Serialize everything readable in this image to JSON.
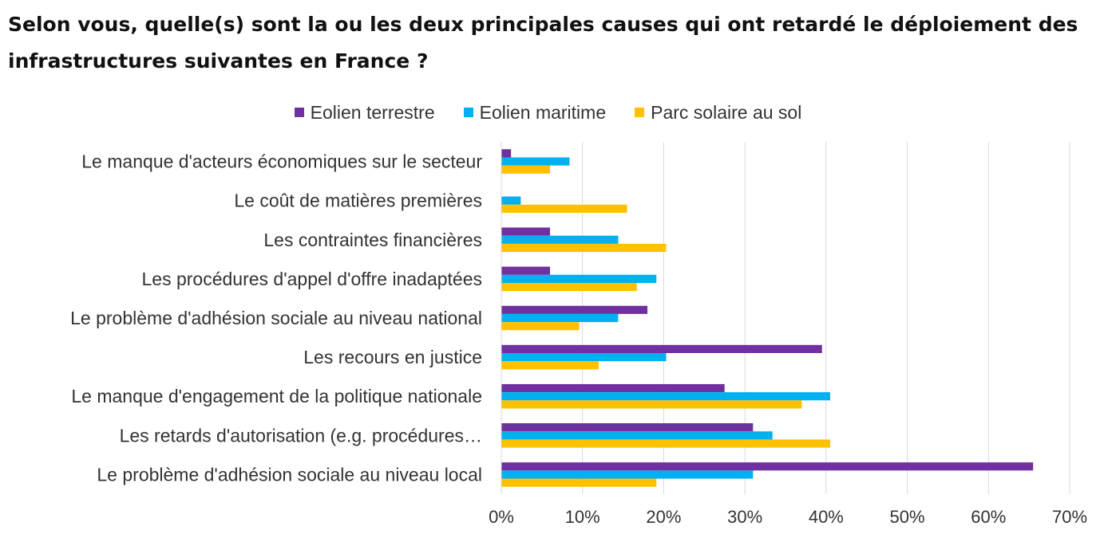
{
  "title_line1": "Selon vous, quelle(s) sont la ou les deux principales causes qui ont retardé le déploiement des",
  "title_line2": "infrastructures suivantes en France ?",
  "chart_data": {
    "type": "bar",
    "orientation": "horizontal",
    "title": "Selon vous, quelle(s) sont la ou les deux principales causes qui ont retardé le déploiement des infrastructures suivantes en France ?",
    "legend_position": "top",
    "grid": true,
    "xlim": [
      0,
      70
    ],
    "x_ticks": [
      "0%",
      "10%",
      "20%",
      "30%",
      "40%",
      "50%",
      "60%",
      "70%"
    ],
    "categories": [
      "Le manque d'acteurs économiques sur le secteur",
      "Le coût de matières premières",
      "Les contraintes financières",
      "Les procédures d'appel d'offre inadaptées",
      "Le problème d'adhésion sociale au niveau national",
      "Les recours en justice",
      "Le manque d'engagement de la politique nationale",
      "Les retards d'autorisation (e.g. procédures…",
      "Le problème d'adhésion sociale au niveau local"
    ],
    "series": [
      {
        "name": "Eolien terrestre",
        "color": "#7030a0",
        "values": [
          1.2,
          0,
          6,
          6,
          18,
          39.5,
          27.5,
          31,
          65.5
        ]
      },
      {
        "name": "Eolien maritime",
        "color": "#00b0f0",
        "values": [
          8.4,
          2.4,
          14.4,
          19.1,
          14.4,
          20.3,
          40.5,
          33.4,
          31
        ]
      },
      {
        "name": "Parc solaire au sol",
        "color": "#ffc000",
        "values": [
          6,
          15.5,
          20.3,
          16.7,
          9.6,
          12,
          37,
          40.5,
          19.1
        ]
      }
    ]
  }
}
